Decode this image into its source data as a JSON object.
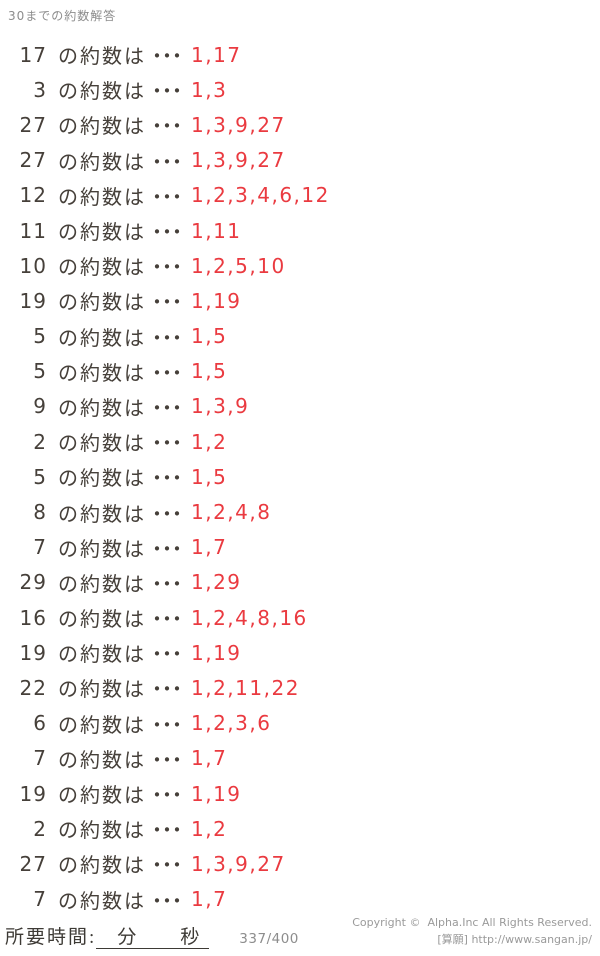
{
  "header": {
    "title": "30までの約数解答"
  },
  "colors": {
    "ink": "#46403a",
    "answer_red": "#ea3a40",
    "muted_gray": "#8d8d8d",
    "copyright_gray": "#9a9a9a",
    "footer_ink": "#3d3a35"
  },
  "problems": {
    "label": "の約数は",
    "dots": "・・・",
    "rows": [
      {
        "number": "17",
        "answer": "1,17"
      },
      {
        "number": "3",
        "answer": "1,3"
      },
      {
        "number": "27",
        "answer": "1,3,9,27"
      },
      {
        "number": "27",
        "answer": "1,3,9,27"
      },
      {
        "number": "12",
        "answer": "1,2,3,4,6,12"
      },
      {
        "number": "11",
        "answer": "1,11"
      },
      {
        "number": "10",
        "answer": "1,2,5,10"
      },
      {
        "number": "19",
        "answer": "1,19"
      },
      {
        "number": "5",
        "answer": "1,5"
      },
      {
        "number": "5",
        "answer": "1,5"
      },
      {
        "number": "9",
        "answer": "1,3,9"
      },
      {
        "number": "2",
        "answer": "1,2"
      },
      {
        "number": "5",
        "answer": "1,5"
      },
      {
        "number": "8",
        "answer": "1,2,4,8"
      },
      {
        "number": "7",
        "answer": "1,7"
      },
      {
        "number": "29",
        "answer": "1,29"
      },
      {
        "number": "16",
        "answer": "1,2,4,8,16"
      },
      {
        "number": "19",
        "answer": "1,19"
      },
      {
        "number": "22",
        "answer": "1,2,11,22"
      },
      {
        "number": "6",
        "answer": "1,2,3,6"
      },
      {
        "number": "7",
        "answer": "1,7"
      },
      {
        "number": "19",
        "answer": "1,19"
      },
      {
        "number": "2",
        "answer": "1,2"
      },
      {
        "number": "27",
        "answer": "1,3,9,27"
      },
      {
        "number": "7",
        "answer": "1,7"
      }
    ]
  },
  "footer": {
    "time_label": "所要時間:",
    "time_blank_text": "　分　　秒",
    "page_indicator": "337/400",
    "copyright_line1": "Copyright ©  Alpha.Inc All Rights Reserved.",
    "copyright_line2": "[算願] http://www.sangan.jp/"
  }
}
